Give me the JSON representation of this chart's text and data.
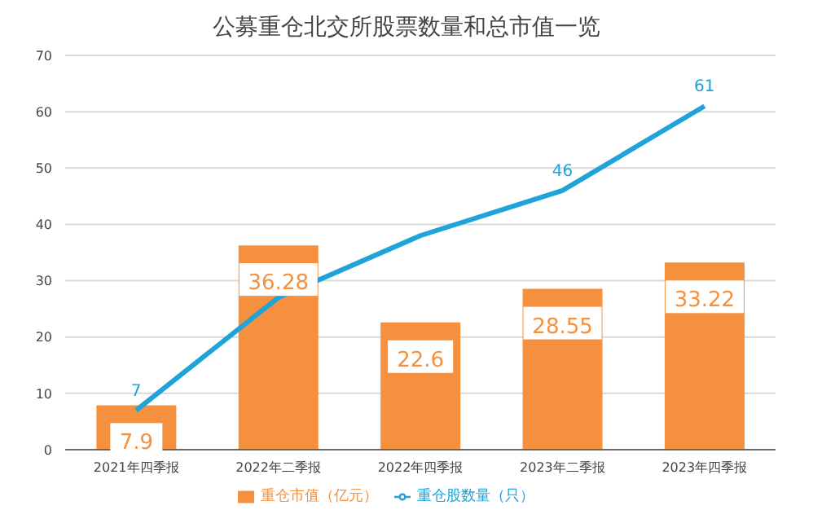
{
  "chart_data": {
    "type": "bar",
    "title": "公募重仓北交所股票数量和总市值一览",
    "categories": [
      "2021年四季报",
      "2022年二季报",
      "2022年四季报",
      "2023年二季报",
      "2023年四季报"
    ],
    "series": [
      {
        "name": "重仓市值（亿元）",
        "color": "#f5903e",
        "values": [
          7.9,
          36.28,
          22.6,
          28.55,
          33.22
        ],
        "value_labels": [
          "7.9",
          "36.28",
          "22.6",
          "28.55",
          "33.22"
        ]
      },
      {
        "name": "重仓股数量（只）",
        "type": "line",
        "color": "#1fa3d8",
        "values": [
          7,
          27,
          38,
          46,
          61
        ],
        "value_labels": [
          "7",
          null,
          null,
          "46",
          "61"
        ]
      }
    ],
    "ylim": [
      0,
      70
    ],
    "yticks": [
      0,
      10,
      20,
      30,
      40,
      50,
      60,
      70
    ],
    "grid": "y",
    "legend": "bottom",
    "marker": "none"
  }
}
